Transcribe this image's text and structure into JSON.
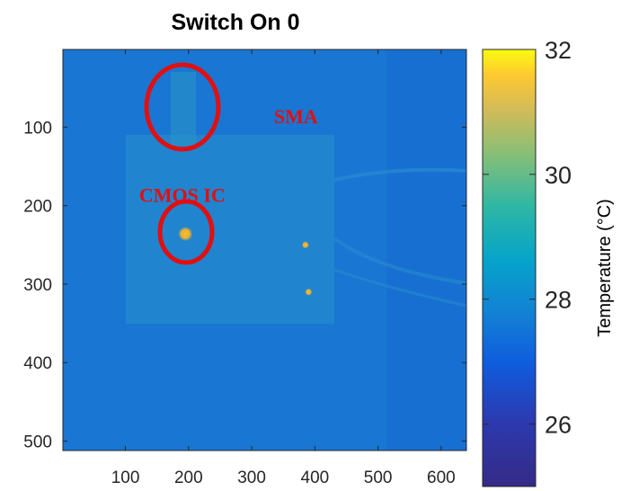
{
  "chart_data": {
    "type": "heatmap",
    "title": "Switch On 0",
    "xlim": [
      1,
      640
    ],
    "ylim": [
      1,
      512
    ],
    "y_reversed": true,
    "x_ticks": [
      100,
      200,
      300,
      400,
      500,
      600
    ],
    "y_ticks": [
      100,
      200,
      300,
      400,
      500
    ],
    "colorbar": {
      "label": "Temperature (°C)",
      "range": [
        25,
        32
      ],
      "ticks": [
        26,
        28,
        30,
        32
      ],
      "colormap": "parula"
    },
    "background_temperature": 27.4,
    "hot_spots": [
      {
        "x": 195,
        "y": 236,
        "temperature": 31.5
      },
      {
        "x": 385,
        "y": 250,
        "temperature": 30.2
      },
      {
        "x": 390,
        "y": 310,
        "temperature": 30.0
      }
    ],
    "annotations": [
      {
        "text": "SMA",
        "x": 370,
        "y": 95
      },
      {
        "text": "CMOS IC",
        "x": 190,
        "y": 195
      }
    ]
  }
}
